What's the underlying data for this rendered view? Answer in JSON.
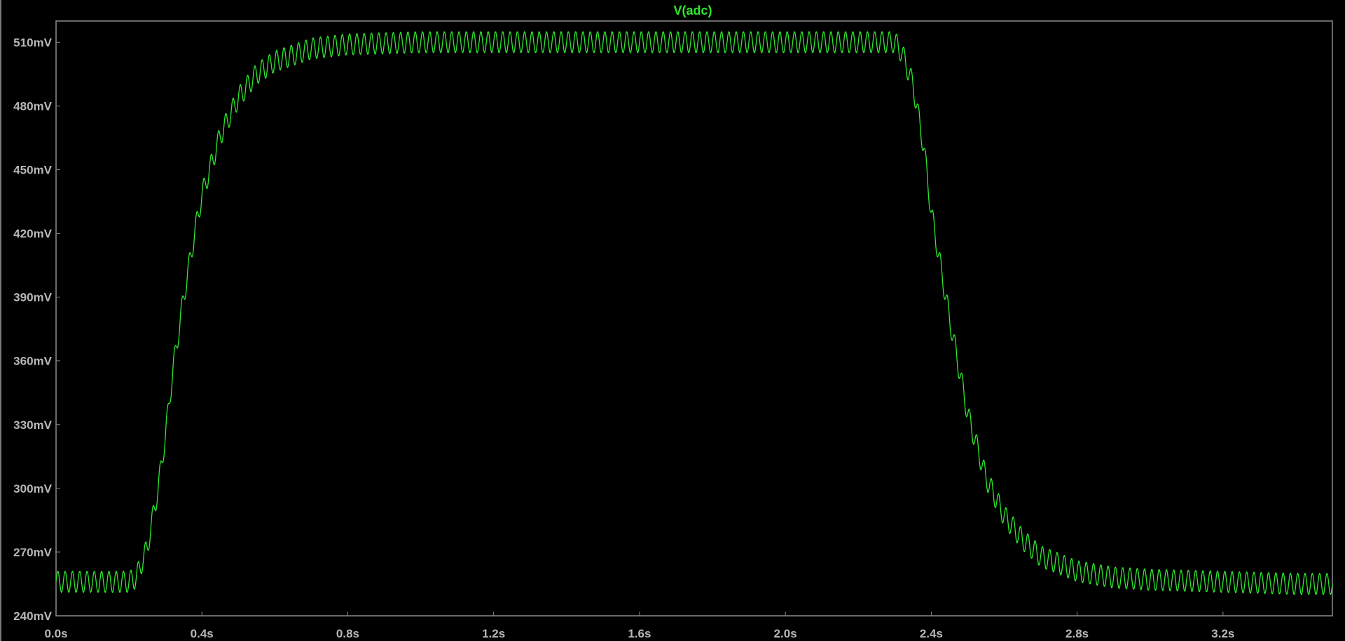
{
  "chart_data": {
    "type": "line",
    "title": "",
    "xlabel": "",
    "ylabel": "",
    "xlim": [
      0.0,
      3.5
    ],
    "ylim": [
      240,
      520
    ],
    "grid": false,
    "legend": "top-center",
    "colors": {
      "background": "#000000",
      "axis": "#8c8c8c",
      "tick_label": "#b8b8b8",
      "trace": "#2ee82e"
    },
    "x_ticks": [
      {
        "value": 0.0,
        "label": "0.0s"
      },
      {
        "value": 0.4,
        "label": "0.4s"
      },
      {
        "value": 0.8,
        "label": "0.8s"
      },
      {
        "value": 1.2,
        "label": "1.2s"
      },
      {
        "value": 1.6,
        "label": "1.6s"
      },
      {
        "value": 2.0,
        "label": "2.0s"
      },
      {
        "value": 2.4,
        "label": "2.4s"
      },
      {
        "value": 2.8,
        "label": "2.8s"
      },
      {
        "value": 3.2,
        "label": "3.2s"
      }
    ],
    "y_ticks": [
      {
        "value": 240,
        "label": "240mV"
      },
      {
        "value": 270,
        "label": "270mV"
      },
      {
        "value": 300,
        "label": "300mV"
      },
      {
        "value": 330,
        "label": "330mV"
      },
      {
        "value": 360,
        "label": "360mV"
      },
      {
        "value": 390,
        "label": "390mV"
      },
      {
        "value": 420,
        "label": "420mV"
      },
      {
        "value": 450,
        "label": "450mV"
      },
      {
        "value": 480,
        "label": "480mV"
      },
      {
        "value": 510,
        "label": "510mV"
      }
    ],
    "series": [
      {
        "name": "V(adc)",
        "color": "#2ee82e",
        "x": [
          0.0,
          0.1,
          0.2,
          0.22,
          0.25,
          0.28,
          0.3,
          0.32,
          0.35,
          0.38,
          0.4,
          0.45,
          0.5,
          0.55,
          0.6,
          0.7,
          0.8,
          1.0,
          1.2,
          1.6,
          2.0,
          2.2,
          2.3,
          2.32,
          2.35,
          2.38,
          2.4,
          2.45,
          2.5,
          2.55,
          2.6,
          2.65,
          2.7,
          2.8,
          2.9,
          3.0,
          3.2,
          3.4,
          3.5
        ],
        "y": [
          256,
          256,
          256,
          258,
          272,
          300,
          325,
          355,
          390,
          420,
          438,
          466,
          484,
          495,
          501,
          507,
          509,
          510,
          510,
          510,
          510,
          510,
          510,
          505,
          490,
          460,
          430,
          380,
          335,
          305,
          287,
          276,
          268,
          261,
          258,
          257,
          256,
          255,
          255
        ],
        "ripple": {
          "amplitude_mV": 5,
          "period_s": 0.02
        }
      }
    ]
  }
}
